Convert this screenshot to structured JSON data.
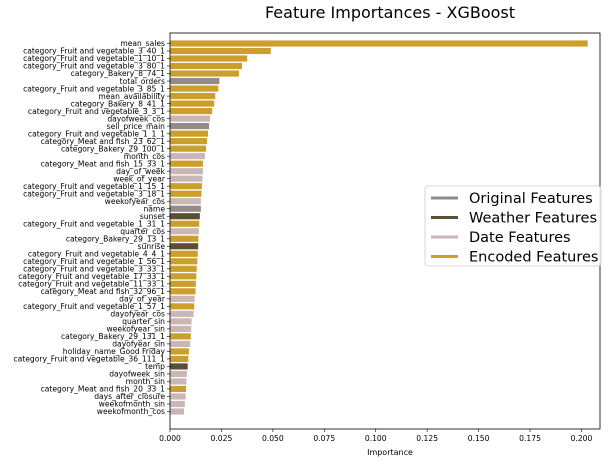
{
  "chart_data": {
    "type": "bar",
    "orientation": "horizontal",
    "title": "Feature Importances - XGBoost",
    "xlabel": "Importance",
    "ylabel": "",
    "xlim": [
      0,
      0.209
    ],
    "xticks": [
      0.0,
      0.025,
      0.05,
      0.075,
      0.1,
      0.125,
      0.15,
      0.175,
      0.2
    ],
    "xtick_labels": [
      "0.000",
      "0.025",
      "0.050",
      "0.075",
      "0.100",
      "0.125",
      "0.150",
      "0.175",
      "0.200"
    ],
    "grid": false,
    "legend": {
      "placement": "center-right",
      "entries": [
        {
          "label": "Original Features",
          "color": "#938a8a"
        },
        {
          "label": "Weather Features",
          "color": "#5a4e36"
        },
        {
          "label": "Date Features",
          "color": "#cbb6b7"
        },
        {
          "label": "Encoded Features",
          "color": "#cc9e2c"
        }
      ]
    },
    "colors": {
      "original": "#938a8a",
      "weather": "#5a4e36",
      "date": "#cbb6b7",
      "encoded": "#cc9e2c"
    },
    "features": [
      {
        "name": "mean_sales",
        "value": 0.203,
        "group": "encoded"
      },
      {
        "name": "category_Fruit and vegetable_3_40_1",
        "value": 0.049,
        "group": "encoded"
      },
      {
        "name": "category_Fruit and vegetable_1_10_1",
        "value": 0.0375,
        "group": "encoded"
      },
      {
        "name": "category_Fruit and vegetable_3_80_1",
        "value": 0.035,
        "group": "encoded"
      },
      {
        "name": "category_Bakery_8_74_1",
        "value": 0.0335,
        "group": "encoded"
      },
      {
        "name": "total_orders",
        "value": 0.024,
        "group": "original"
      },
      {
        "name": "category_Fruit and vegetable_3_85_1",
        "value": 0.0235,
        "group": "encoded"
      },
      {
        "name": "mean_availability",
        "value": 0.022,
        "group": "encoded"
      },
      {
        "name": "category_Bakery_8_41_1",
        "value": 0.0215,
        "group": "encoded"
      },
      {
        "name": "category_Fruit and vegetable_3_3_1",
        "value": 0.0205,
        "group": "encoded"
      },
      {
        "name": "dayofweek_cos",
        "value": 0.0195,
        "group": "date"
      },
      {
        "name": "sell_price_main",
        "value": 0.019,
        "group": "original"
      },
      {
        "name": "category_Fruit and vegetable_1_1_1",
        "value": 0.0185,
        "group": "encoded"
      },
      {
        "name": "category_Meat and fish_23_62_1",
        "value": 0.018,
        "group": "encoded"
      },
      {
        "name": "category_Bakery_29_100_1",
        "value": 0.0175,
        "group": "encoded"
      },
      {
        "name": "month_cos",
        "value": 0.017,
        "group": "date"
      },
      {
        "name": "category_Meat and fish_15_33_1",
        "value": 0.016,
        "group": "encoded"
      },
      {
        "name": "day_of_week",
        "value": 0.016,
        "group": "date"
      },
      {
        "name": "week_of_year",
        "value": 0.0158,
        "group": "date"
      },
      {
        "name": "category_Fruit and vegetable_1_15_1",
        "value": 0.0155,
        "group": "encoded"
      },
      {
        "name": "category_Fruit and vegetable_3_18_1",
        "value": 0.0153,
        "group": "encoded"
      },
      {
        "name": "weekofyear_cos",
        "value": 0.015,
        "group": "date"
      },
      {
        "name": "name",
        "value": 0.015,
        "group": "original"
      },
      {
        "name": "sunset",
        "value": 0.0145,
        "group": "weather"
      },
      {
        "name": "category_Fruit and vegetable_1_31_1",
        "value": 0.0142,
        "group": "encoded"
      },
      {
        "name": "quarter_cos",
        "value": 0.014,
        "group": "date"
      },
      {
        "name": "category_Bakery_29_13_1",
        "value": 0.0138,
        "group": "encoded"
      },
      {
        "name": "sunrise",
        "value": 0.0137,
        "group": "weather"
      },
      {
        "name": "category_Fruit and vegetable_4_4_1",
        "value": 0.0135,
        "group": "encoded"
      },
      {
        "name": "category_Fruit and vegetable_1_56_1",
        "value": 0.0133,
        "group": "encoded"
      },
      {
        "name": "category_Fruit and vegetable_3_33_1",
        "value": 0.013,
        "group": "encoded"
      },
      {
        "name": "category_Fruit and vegetable_17_33_1",
        "value": 0.0128,
        "group": "encoded"
      },
      {
        "name": "category_Fruit and vegetable_11_33_1",
        "value": 0.0126,
        "group": "encoded"
      },
      {
        "name": "category_Meat and fish_32_96_1",
        "value": 0.0124,
        "group": "encoded"
      },
      {
        "name": "day_of_year",
        "value": 0.012,
        "group": "date"
      },
      {
        "name": "category_Fruit and vegetable_1_57_1",
        "value": 0.0118,
        "group": "encoded"
      },
      {
        "name": "dayofyear_cos",
        "value": 0.0115,
        "group": "date"
      },
      {
        "name": "quarter_sin",
        "value": 0.0105,
        "group": "date"
      },
      {
        "name": "weekofyear_sin",
        "value": 0.0103,
        "group": "date"
      },
      {
        "name": "category_Bakery_29_131_1",
        "value": 0.0101,
        "group": "encoded"
      },
      {
        "name": "dayofyear_sin",
        "value": 0.0098,
        "group": "date"
      },
      {
        "name": "holiday_name_Good Friday",
        "value": 0.0092,
        "group": "encoded"
      },
      {
        "name": "category_Fruit and vegetable_36_111_1",
        "value": 0.0089,
        "group": "encoded"
      },
      {
        "name": "temp",
        "value": 0.0086,
        "group": "weather"
      },
      {
        "name": "dayofweek_sin",
        "value": 0.0082,
        "group": "date"
      },
      {
        "name": "month_sin",
        "value": 0.008,
        "group": "date"
      },
      {
        "name": "category_Meat and fish_20_33_1",
        "value": 0.0078,
        "group": "encoded"
      },
      {
        "name": "days_after_closure",
        "value": 0.0076,
        "group": "date"
      },
      {
        "name": "weekofmonth_sin",
        "value": 0.0072,
        "group": "date"
      },
      {
        "name": "weekofmonth_cos",
        "value": 0.0068,
        "group": "date"
      }
    ]
  }
}
